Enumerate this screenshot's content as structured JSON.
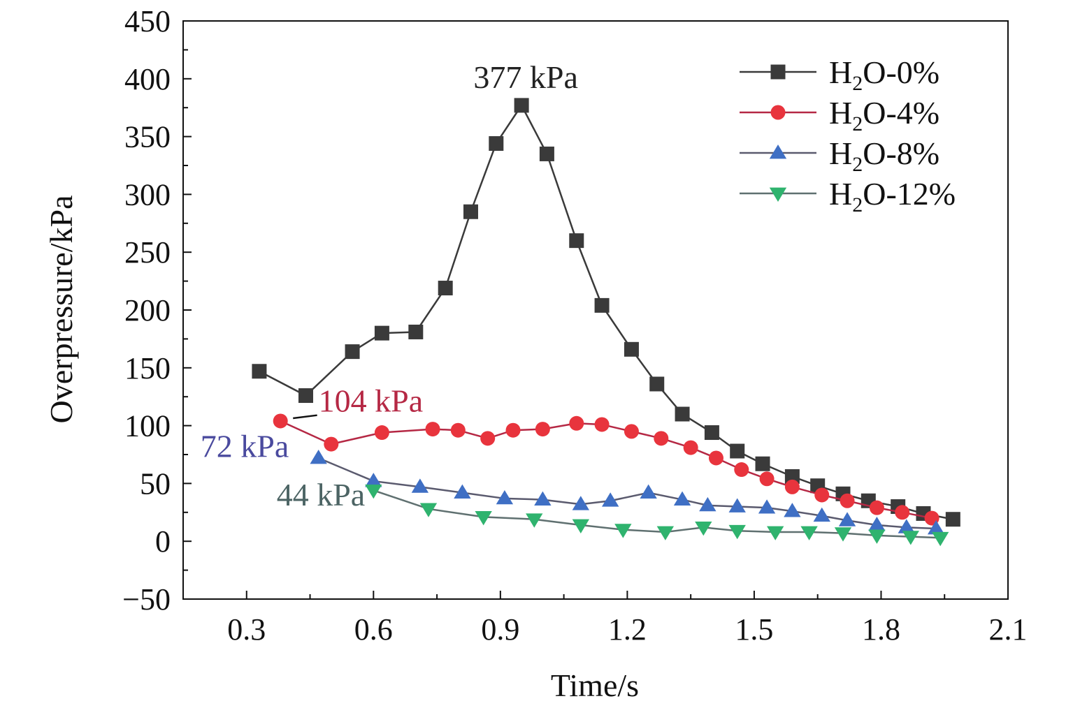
{
  "chart_data": {
    "type": "line",
    "xlabel": "Time/s",
    "ylabel": "Overpressure/kPa",
    "xlim": [
      0.15,
      2.1
    ],
    "ylim": [
      -50,
      450
    ],
    "xticks": [
      0.3,
      0.6,
      0.9,
      1.2,
      1.5,
      1.8,
      2.1
    ],
    "xtick_labels": [
      "0.3",
      "0.6",
      "0.9",
      "1.2",
      "1.5",
      "1.8",
      "2.1"
    ],
    "yticks": [
      -50,
      0,
      50,
      100,
      150,
      200,
      250,
      300,
      350,
      400,
      450
    ],
    "ytick_labels": [
      "−50",
      "0",
      "50",
      "100",
      "150",
      "200",
      "250",
      "300",
      "350",
      "400",
      "450"
    ],
    "legend_position": "top-right",
    "series": [
      {
        "name": "H2O-0%",
        "legend_main": "H",
        "legend_sub": "2",
        "legend_rest": "O-0%",
        "marker": "square",
        "color": "#3a3a3a",
        "line_color": "#3a3a3a",
        "x": [
          0.33,
          0.44,
          0.55,
          0.62,
          0.7,
          0.77,
          0.83,
          0.89,
          0.95,
          1.01,
          1.08,
          1.14,
          1.21,
          1.27,
          1.33,
          1.4,
          1.46,
          1.52,
          1.59,
          1.65,
          1.71,
          1.77,
          1.84,
          1.9,
          1.97
        ],
        "y": [
          147,
          126,
          164,
          180,
          181,
          219,
          285,
          344,
          377,
          335,
          260,
          204,
          166,
          136,
          110,
          94,
          78,
          67,
          56,
          48,
          41,
          35,
          30,
          24,
          19
        ]
      },
      {
        "name": "H2O-4%",
        "legend_main": "H",
        "legend_sub": "2",
        "legend_rest": "O-4%",
        "marker": "circle",
        "color": "#e8343d",
        "line_color": "#b52844",
        "x": [
          0.38,
          0.5,
          0.62,
          0.74,
          0.8,
          0.87,
          0.93,
          1.0,
          1.08,
          1.14,
          1.21,
          1.28,
          1.35,
          1.41,
          1.47,
          1.53,
          1.59,
          1.66,
          1.72,
          1.79,
          1.85,
          1.92
        ],
        "y": [
          104,
          84,
          94,
          97,
          96,
          89,
          96,
          97,
          102,
          101,
          95,
          89,
          81,
          72,
          62,
          54,
          47,
          40,
          35,
          29,
          25,
          20
        ]
      },
      {
        "name": "H2O-8%",
        "legend_main": "H",
        "legend_sub": "2",
        "legend_rest": "O-8%",
        "marker": "triangle-up",
        "color": "#3f6fc4",
        "line_color": "#5a5a6e",
        "x": [
          0.47,
          0.6,
          0.71,
          0.81,
          0.91,
          1.0,
          1.09,
          1.16,
          1.25,
          1.33,
          1.39,
          1.46,
          1.53,
          1.59,
          1.66,
          1.72,
          1.79,
          1.86,
          1.93
        ],
        "y": [
          72,
          52,
          47,
          42,
          37,
          36,
          32,
          35,
          42,
          36,
          31,
          30,
          29,
          26,
          22,
          18,
          14,
          12,
          11
        ]
      },
      {
        "name": "H2O-12%",
        "legend_main": "H",
        "legend_sub": "2",
        "legend_rest": "O-12%",
        "marker": "triangle-down",
        "color": "#2fb36e",
        "line_color": "#5f7070",
        "x": [
          0.6,
          0.73,
          0.86,
          0.98,
          1.09,
          1.19,
          1.29,
          1.38,
          1.46,
          1.55,
          1.63,
          1.71,
          1.79,
          1.87,
          1.94
        ],
        "y": [
          44,
          28,
          21,
          19,
          14,
          10,
          8,
          12,
          9,
          8,
          8,
          7,
          5,
          4,
          3
        ]
      }
    ],
    "annotations": [
      {
        "text": "377 kPa",
        "x": 0.96,
        "y": 392,
        "color": "#222222",
        "anchor": "middle"
      },
      {
        "text": "104 kPa",
        "x": 0.47,
        "y": 112,
        "color": "#b52844",
        "anchor": "start",
        "leader_from": [
          0.39,
          104
        ],
        "leader_to": [
          0.47,
          109
        ]
      },
      {
        "text": "72 kPa",
        "x": 0.4,
        "y": 73,
        "color": "#4a4a9e",
        "anchor": "end"
      },
      {
        "text": "44 kPa",
        "x": 0.58,
        "y": 31,
        "color": "#4c6464",
        "anchor": "end"
      }
    ]
  }
}
